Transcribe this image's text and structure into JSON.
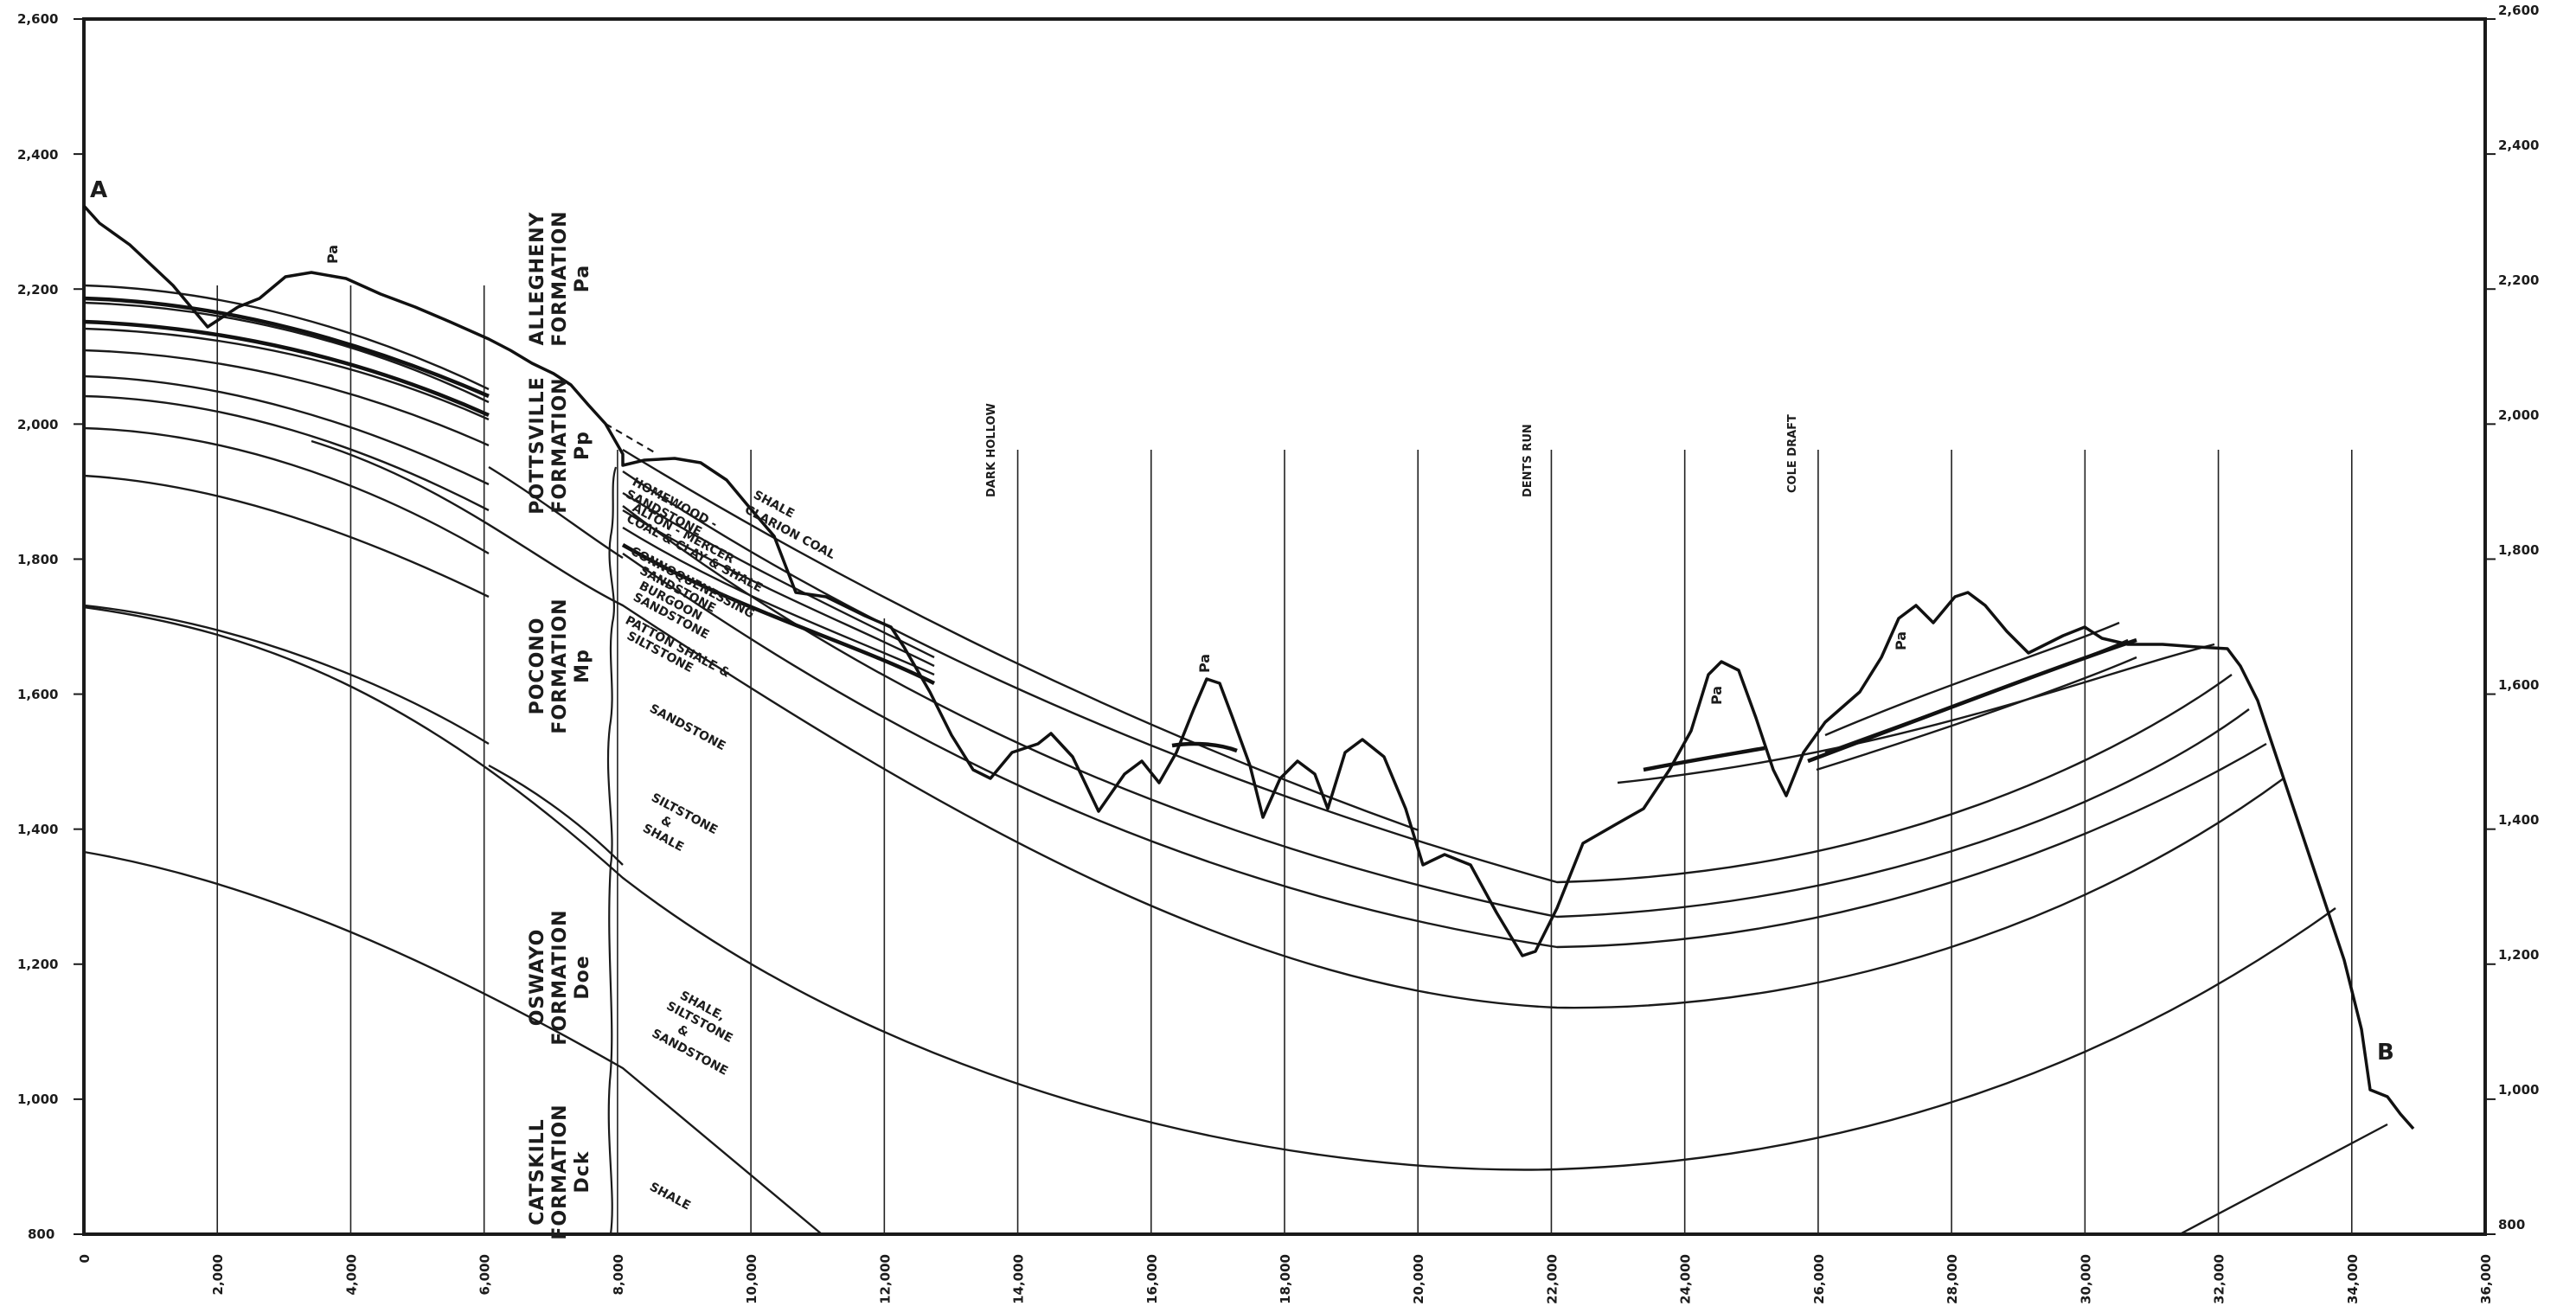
{
  "y_axis": {
    "left_ticks": [
      "2,600",
      "2,400",
      "2,200",
      "2,000",
      "1,800",
      "1,600",
      "1,400",
      "1,200",
      "1,000",
      "800"
    ],
    "right_ticks": [
      "2,600",
      "2,400",
      "2,200",
      "2,000",
      "1,800",
      "1,600",
      "1,400",
      "1,200",
      "1,000",
      "800"
    ]
  },
  "x_axis": {
    "ticks": [
      "0",
      "2,000",
      "4,000",
      "6,000",
      "8,000",
      "10,000",
      "12,000",
      "14,000",
      "16,000",
      "18,000",
      "20,000",
      "22,000",
      "24,000",
      "26,000",
      "28,000",
      "30,000",
      "32,000",
      "34,000",
      "36,000"
    ]
  },
  "points": {
    "a": "A",
    "b": "B"
  },
  "formations": {
    "allegheny": [
      "ALLEGHENY",
      "FORMATION",
      "Pa"
    ],
    "pottsville": [
      "POTTSVILLE",
      "FORMATION",
      "Pp"
    ],
    "pocono": [
      "POCONO",
      "FORMATION",
      "Mp"
    ],
    "oswayo": [
      "OSWAYO",
      "FORMATION",
      "Doe"
    ],
    "catskill": [
      "CATSKILL",
      "FORMATION",
      "Dck"
    ]
  },
  "lithology": {
    "shale_top": "SHALE",
    "clarion_coal": "CLARION COAL",
    "homewood": [
      "HOMEWOOD -",
      "SANDSTONE"
    ],
    "mercer": [
      "ALTON - MERCER",
      "COAL & CLAY & SHALE"
    ],
    "connoquenessing": [
      "CONNOQUENESSING",
      "SANDSTONE"
    ],
    "burgoon": [
      "BURGOON",
      "SANDSTONE"
    ],
    "patton": [
      "PATTON SHALE &",
      "SILTSTONE"
    ],
    "sandstone": "SANDSTONE",
    "siltstone_shale": [
      "SILTSTONE",
      "&",
      "SHALE"
    ],
    "shale_silt_sand": [
      "SHALE,",
      "SILTSTONE",
      "&",
      "SANDSTONE"
    ],
    "shale_bottom": "SHALE"
  },
  "outcrop_labels": [
    "Pa",
    "Pa",
    "Pa",
    "Pa"
  ],
  "places": {
    "dark_hollow": "DARK HOLLOW",
    "dents_run": "DENTS RUN",
    "cole_draft": "COLE DRAFT"
  }
}
